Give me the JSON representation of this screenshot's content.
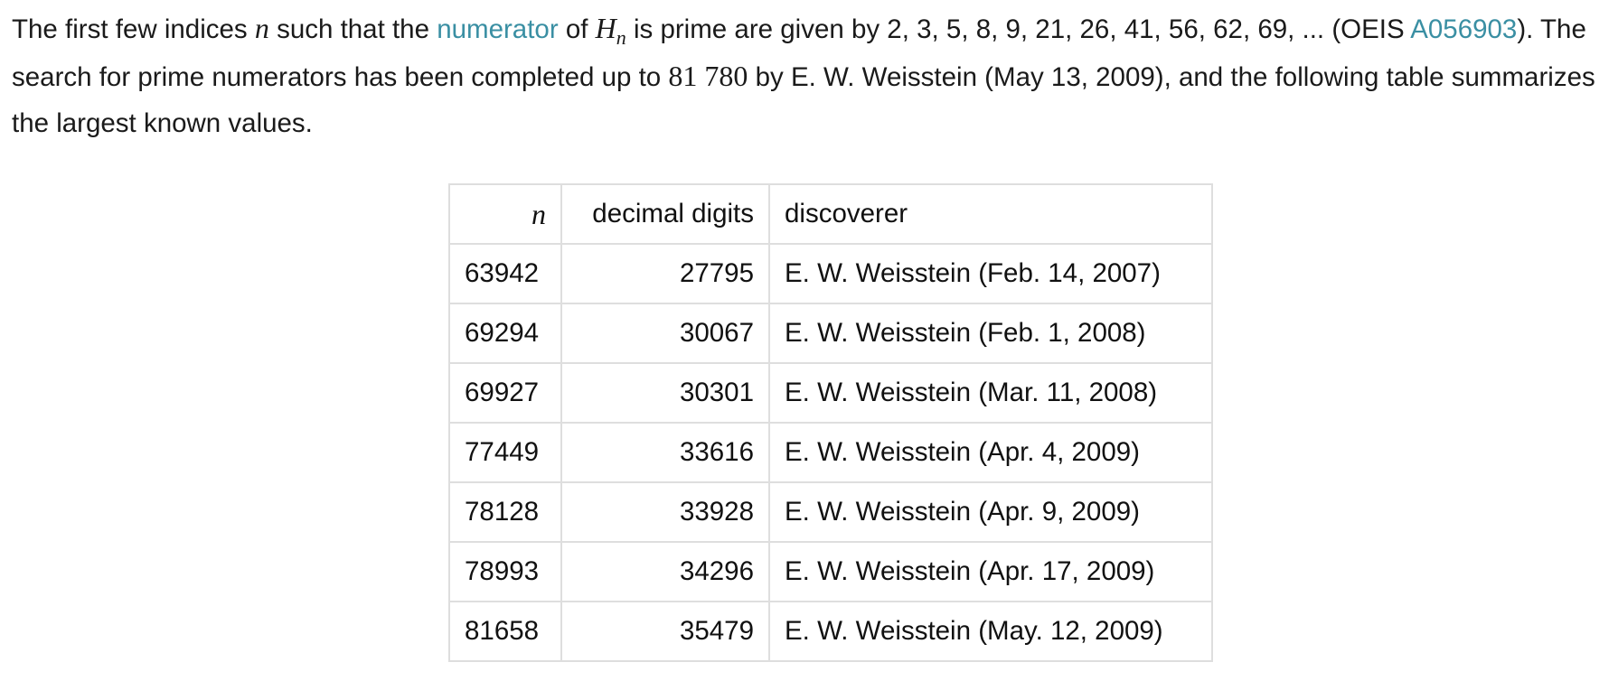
{
  "paragraph": {
    "intro": "The first few indices ",
    "n_symbol": "n",
    "text_before_numerator": " such that the ",
    "numerator_link": "numerator",
    "text_of": " of ",
    "H_symbol": "H",
    "H_subscript": "n",
    "text_sequence": " is prime are given by 2, 3, 5, 8, 9, 21, 26, 41, 56, 62, 69, ... (OEIS ",
    "oeis_link": "A056903",
    "text_search": "). The search for prime numerators has been completed up to ",
    "search_limit": "81 780",
    "text_end": " by E. W. Weisstein (May 13, 2009), and the following table summarizes the largest known values."
  },
  "table": {
    "headers": {
      "n": "n",
      "digits": "decimal digits",
      "discoverer": "discoverer"
    },
    "rows": [
      {
        "n": "63942",
        "digits": "27795",
        "discoverer": "E. W. Weisstein (Feb. 14, 2007)"
      },
      {
        "n": "69294",
        "digits": "30067",
        "discoverer": "E. W. Weisstein (Feb. 1, 2008)"
      },
      {
        "n": "69927",
        "digits": "30301",
        "discoverer": "E. W. Weisstein (Mar. 11, 2008)"
      },
      {
        "n": "77449",
        "digits": "33616",
        "discoverer": "E. W. Weisstein (Apr. 4, 2009)"
      },
      {
        "n": "78128",
        "digits": "33928",
        "discoverer": "E. W. Weisstein (Apr. 9, 2009)"
      },
      {
        "n": "78993",
        "digits": "34296",
        "discoverer": "E. W. Weisstein (Apr. 17, 2009)"
      },
      {
        "n": "81658",
        "digits": "35479",
        "discoverer": "E. W. Weisstein (May. 12, 2009)"
      }
    ]
  },
  "colors": {
    "link": "#3a8fa3",
    "text": "#1a1a1a",
    "table_border": "#dedede"
  }
}
